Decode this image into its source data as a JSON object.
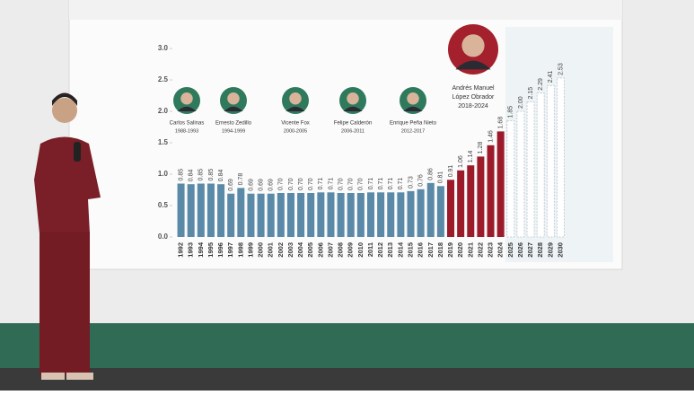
{
  "chart_data": {
    "type": "bar",
    "categories": [
      "1992",
      "1993",
      "1994",
      "1995",
      "1996",
      "1997",
      "1998",
      "1999",
      "2000",
      "2001",
      "2002",
      "2003",
      "2004",
      "2005",
      "2006",
      "2007",
      "2008",
      "2009",
      "2010",
      "2011",
      "2012",
      "2013",
      "2014",
      "2015",
      "2016",
      "2017",
      "2018",
      "2019",
      "2020",
      "2021",
      "2022",
      "2023",
      "2024",
      "2025",
      "2026",
      "2027",
      "2028",
      "2029",
      "2030"
    ],
    "values": [
      0.85,
      0.84,
      0.85,
      0.85,
      0.84,
      0.69,
      0.78,
      0.69,
      0.69,
      0.69,
      0.7,
      0.7,
      0.7,
      0.7,
      0.71,
      0.71,
      0.7,
      0.7,
      0.7,
      0.71,
      0.71,
      0.71,
      0.71,
      0.73,
      0.76,
      0.86,
      0.81,
      0.91,
      1.06,
      1.14,
      1.28,
      1.46,
      1.68,
      1.85,
      2.0,
      2.15,
      2.29,
      2.41,
      2.53
    ],
    "value_labels": [
      "0.85",
      "0.84",
      "0.85",
      "0.85",
      "0.84",
      "0.69",
      "0.78",
      "0.69",
      "0.69",
      "0.69",
      "0.70",
      "0.70",
      "0.70",
      "0.70",
      "0.71",
      "0.71",
      "0.70",
      "0.70",
      "0.70",
      "0.71",
      "0.71",
      "0.71",
      "0.71",
      "0.73",
      "0.76",
      "0.86",
      "0.81",
      "0.91",
      "1.06",
      "1.14",
      "1.28",
      "1.46",
      "1.68",
      "1.85",
      "2.00",
      "2.15",
      "2.29",
      "2.41",
      "2.53"
    ],
    "colors": [
      "#5b8aa8",
      "#5b8aa8",
      "#5b8aa8",
      "#5b8aa8",
      "#5b8aa8",
      "#5b8aa8",
      "#5b8aa8",
      "#5b8aa8",
      "#5b8aa8",
      "#5b8aa8",
      "#5b8aa8",
      "#5b8aa8",
      "#5b8aa8",
      "#5b8aa8",
      "#5b8aa8",
      "#5b8aa8",
      "#5b8aa8",
      "#5b8aa8",
      "#5b8aa8",
      "#5b8aa8",
      "#5b8aa8",
      "#5b8aa8",
      "#5b8aa8",
      "#5b8aa8",
      "#5b8aa8",
      "#5b8aa8",
      "#5b8aa8",
      "#9b1b2a",
      "#9b1b2a",
      "#9b1b2a",
      "#9b1b2a",
      "#9b1b2a",
      "#9b1b2a",
      "#ffffff",
      "#ffffff",
      "#ffffff",
      "#ffffff",
      "#ffffff",
      "#ffffff"
    ],
    "ylim": [
      0,
      3
    ],
    "yticks": [
      {
        "value": 0,
        "label": "0.0"
      },
      {
        "value": 0.5,
        "label": "0.5"
      },
      {
        "value": 1,
        "label": "1.0"
      },
      {
        "value": 1.5,
        "label": "1.5"
      },
      {
        "value": 2,
        "label": "2.0"
      },
      {
        "value": 2.5,
        "label": "2.5"
      },
      {
        "value": 3,
        "label": "3.0"
      }
    ],
    "annotations": [
      {
        "lines": [
          "Carlos Salinas"
        ],
        "period": "1988-1993"
      },
      {
        "lines": [
          "Ernesto Zedillo"
        ],
        "period": "1994-1999"
      },
      {
        "lines": [
          "Vicente Fox"
        ],
        "period": "2000-2005"
      },
      {
        "lines": [
          "Felipe Calderón"
        ],
        "period": "2006-2011"
      },
      {
        "lines": [
          "Enrique Peña Nieto"
        ],
        "period": "2012-2017"
      },
      {
        "lines": [
          "Andrés Manuel",
          "López Obrador"
        ],
        "period": "2018-2024"
      }
    ]
  }
}
